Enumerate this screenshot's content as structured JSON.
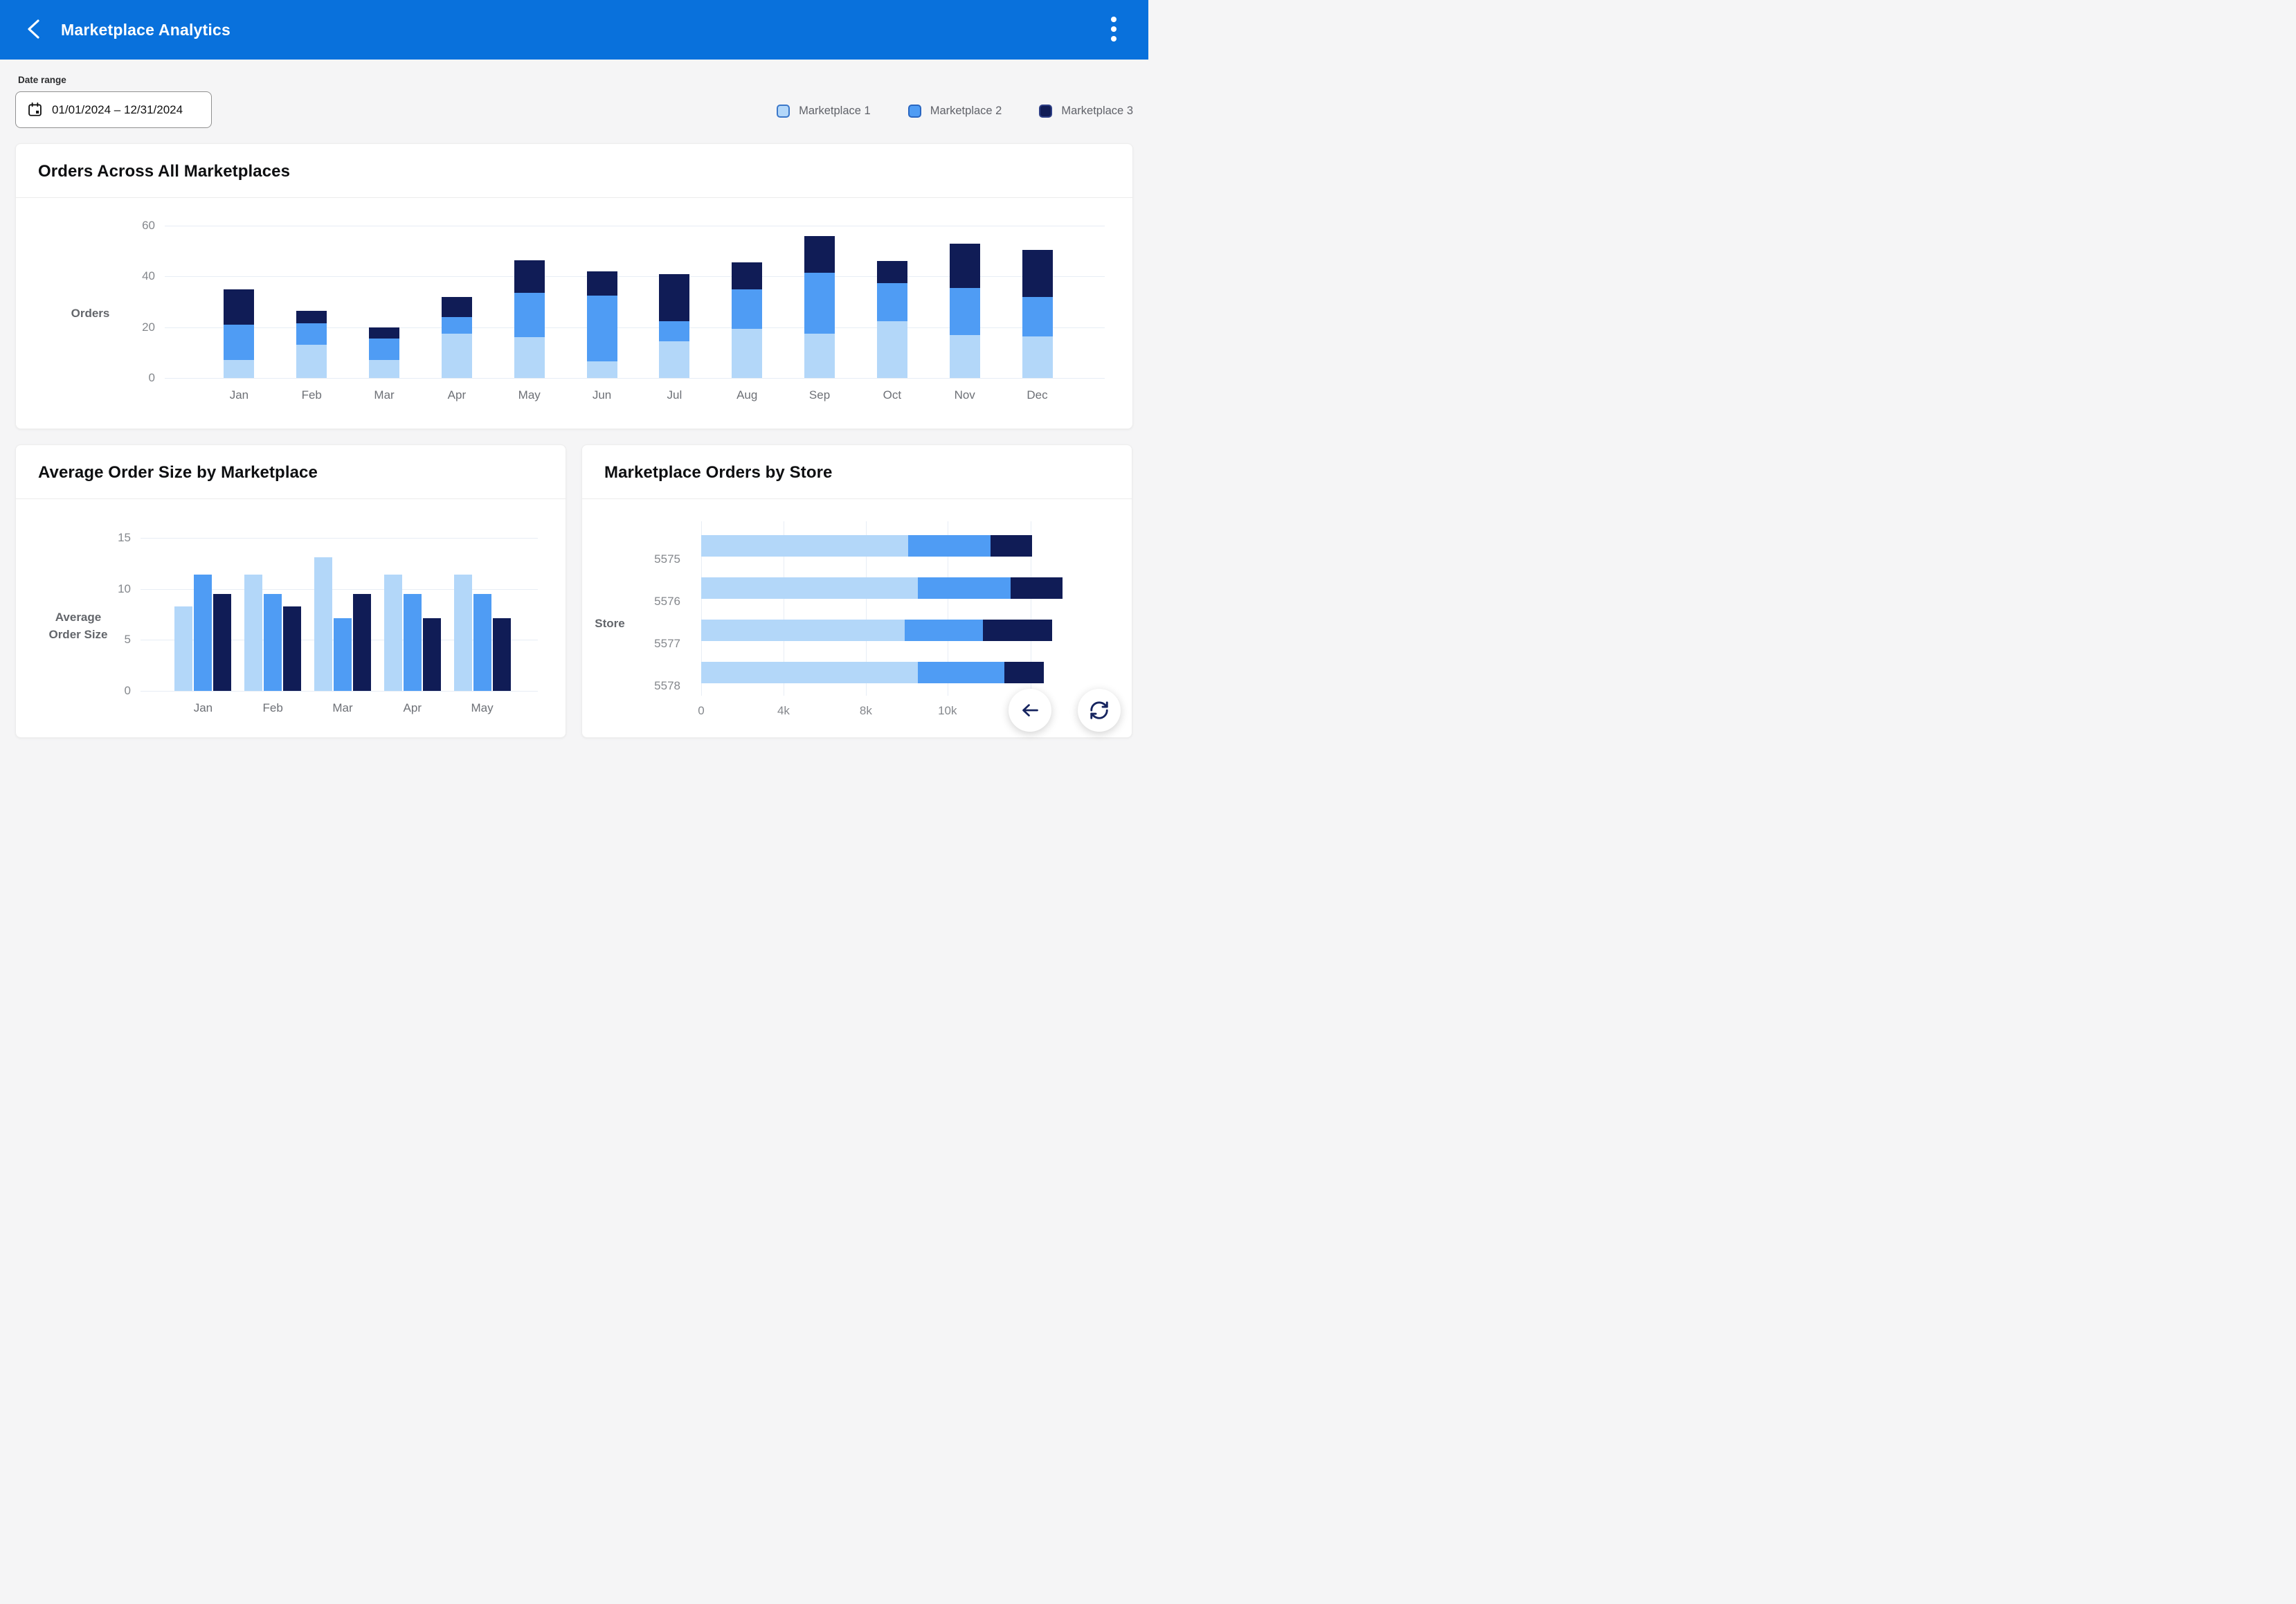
{
  "header": {
    "title": "Marketplace Analytics"
  },
  "filters": {
    "date_range_label": "Date range",
    "date_range_value": "01/01/2024 – 12/31/2024"
  },
  "legend": {
    "items": [
      {
        "label": "Marketplace 1",
        "color": "#b3d7f9",
        "border": "#3b77c9"
      },
      {
        "label": "Marketplace 2",
        "color": "#4f9cf4",
        "border": "#2a66c0"
      },
      {
        "label": "Marketplace 3",
        "color": "#101c56",
        "border": "#2e3f86"
      }
    ]
  },
  "colors": {
    "header_blue": "#0971dc",
    "page_bg": "#f5f5f6",
    "gridline": "#e7edf5",
    "axis_text": "#84878c",
    "fab_icon": "#16245f"
  },
  "chart_data": [
    {
      "id": "orders_all_marketplaces",
      "type": "bar",
      "stacked": true,
      "title": "Orders Across All Marketplaces",
      "ylabel": "Orders",
      "ylim": [
        0,
        60
      ],
      "yticks": [
        0,
        20,
        40,
        60
      ],
      "grid": true,
      "categories": [
        "Jan",
        "Feb",
        "Mar",
        "Apr",
        "May",
        "Jun",
        "Jul",
        "Aug",
        "Sep",
        "Oct",
        "Nov",
        "Dec"
      ],
      "series": [
        {
          "name": "Marketplace 1",
          "values": [
            7,
            13,
            7,
            17.5,
            16,
            6.5,
            14.5,
            19.5,
            17.5,
            22.5,
            17,
            16.5
          ]
        },
        {
          "name": "Marketplace 2",
          "values": [
            14,
            8.5,
            8.5,
            6.5,
            17.5,
            26,
            8,
            15.5,
            24,
            15,
            18.5,
            15.5
          ]
        },
        {
          "name": "Marketplace 3",
          "values": [
            14,
            5,
            4.5,
            8,
            13,
            9.5,
            18.5,
            10.5,
            14.5,
            8.5,
            17.5,
            18.5
          ]
        }
      ]
    },
    {
      "id": "average_order_size",
      "type": "bar",
      "stacked": false,
      "title": "Average Order Size by Marketplace",
      "ylabel": "Average Order Size",
      "ylim": [
        0,
        15
      ],
      "yticks": [
        0,
        5,
        10,
        15
      ],
      "grid": true,
      "categories": [
        "Jan",
        "Feb",
        "Mar",
        "Apr",
        "May"
      ],
      "series": [
        {
          "name": "Marketplace 1",
          "values": [
            8.3,
            11.4,
            13.1,
            11.4,
            11.4
          ]
        },
        {
          "name": "Marketplace 2",
          "values": [
            11.4,
            9.5,
            7.1,
            9.5,
            9.5
          ]
        },
        {
          "name": "Marketplace 3",
          "values": [
            9.5,
            8.3,
            9.5,
            7.1,
            7.1
          ]
        }
      ]
    },
    {
      "id": "marketplace_orders_by_store",
      "type": "bar",
      "orientation": "horizontal",
      "stacked": true,
      "title": "Marketplace Orders by Store",
      "ylabel": "Store",
      "categories": [
        "5575",
        "5576",
        "5577",
        "5578"
      ],
      "xticks": [
        "0",
        "4k",
        "8k",
        "10k"
      ],
      "grid": true,
      "series": [
        {
          "name": "Marketplace 1",
          "values": [
            9000,
            9300,
            9000,
            9300
          ]
        },
        {
          "name": "Marketplace 2",
          "values": [
            2000,
            2200,
            1900,
            2100
          ]
        },
        {
          "name": "Marketplace 3",
          "values": [
            1000,
            1300,
            1700,
            1200
          ]
        }
      ],
      "grid_pct": [
        0,
        22.7,
        45.4,
        67.9,
        90.8
      ],
      "ends_pct": [
        [
          57.1,
          79.8,
          91.2
        ],
        [
          59.8,
          85.4,
          99.6
        ],
        [
          56.2,
          77.7,
          96.7
        ],
        [
          59.8,
          83.5,
          94.4
        ]
      ]
    }
  ]
}
